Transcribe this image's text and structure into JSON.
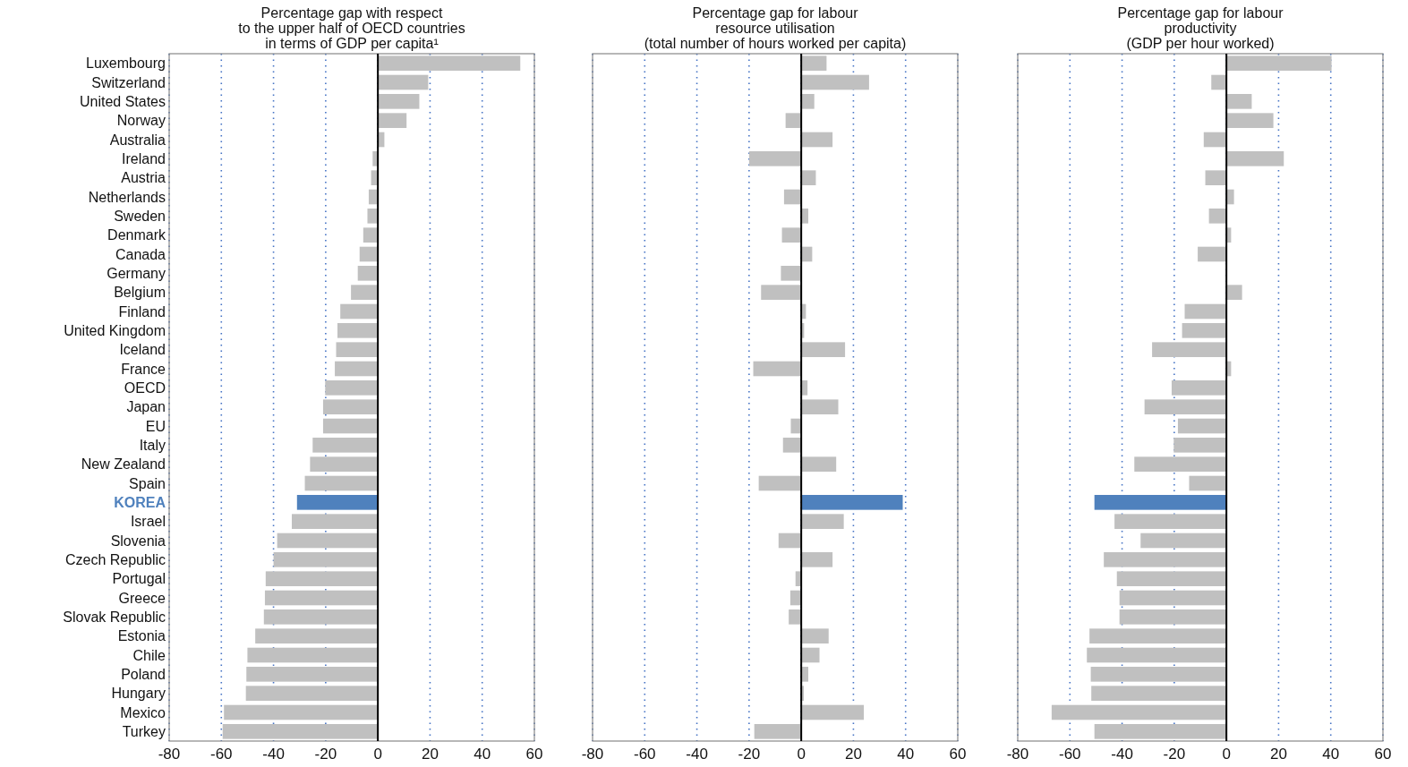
{
  "chart_data": [
    {
      "type": "bar",
      "orientation": "horizontal",
      "title": "Percentage gap with respect\nto the upper half of OECD countries\nin terms of GDP per capita¹",
      "categories": [
        "Luxembourg",
        "Switzerland",
        "United States",
        "Norway",
        "Australia",
        "Ireland",
        "Austria",
        "Netherlands",
        "Sweden",
        "Denmark",
        "Canada",
        "Germany",
        "Belgium",
        "Finland",
        "United Kingdom",
        "Iceland",
        "France",
        "OECD",
        "Japan",
        "EU",
        "Italy",
        "New Zealand",
        "Spain",
        "KOREA",
        "Israel",
        "Slovenia",
        "Czech Republic",
        "Portugal",
        "Greece",
        "Slovak Republic",
        "Estonia",
        "Chile",
        "Poland",
        "Hungary",
        "Mexico",
        "Turkey"
      ],
      "values": [
        54.6,
        19.3,
        15.9,
        11,
        2.5,
        -2,
        -2.6,
        -3.5,
        -4,
        -5.6,
        -7,
        -7.7,
        -10.3,
        -14.4,
        -15.5,
        -16,
        -16.5,
        -20.2,
        -21,
        -21,
        -25,
        -26,
        -28,
        -31,
        -33,
        -38.6,
        -40,
        -43,
        -43.3,
        -43.7,
        -47,
        -50,
        -50.4,
        -50.6,
        -59,
        -59.5
      ],
      "colors": [
        "#c0c0c0",
        "#c0c0c0",
        "#c0c0c0",
        "#c0c0c0",
        "#c0c0c0",
        "#c0c0c0",
        "#c0c0c0",
        "#c0c0c0",
        "#c0c0c0",
        "#c0c0c0",
        "#c0c0c0",
        "#c0c0c0",
        "#c0c0c0",
        "#c0c0c0",
        "#c0c0c0",
        "#c0c0c0",
        "#c0c0c0",
        "#c0c0c0",
        "#c0c0c0",
        "#c0c0c0",
        "#c0c0c0",
        "#c0c0c0",
        "#c0c0c0",
        "#4f81bd",
        "#c0c0c0",
        "#c0c0c0",
        "#c0c0c0",
        "#c0c0c0",
        "#c0c0c0",
        "#c0c0c0",
        "#c0c0c0",
        "#c0c0c0",
        "#c0c0c0",
        "#c0c0c0",
        "#c0c0c0",
        "#c0c0c0"
      ],
      "xlim": [
        -80,
        60
      ],
      "xticks": [
        -80,
        -60,
        -40,
        -20,
        0,
        20,
        40,
        60
      ],
      "grid": "x",
      "ref_lines": [
        {
          "axis": "x",
          "value": 0,
          "color": "#000000"
        }
      ]
    },
    {
      "type": "bar",
      "orientation": "horizontal",
      "title": "Percentage gap for labour\nresource utilisation\n(total number of hours worked per capita)",
      "categories": [
        null,
        null,
        null,
        null,
        null,
        null,
        null,
        null,
        null,
        null,
        null,
        null,
        null,
        null,
        null,
        null,
        null,
        null,
        null,
        null,
        null,
        null,
        null,
        null,
        null,
        null,
        null,
        null,
        null,
        null,
        null,
        null,
        null,
        null,
        null,
        null
      ],
      "values": [
        9.7,
        26,
        5,
        -6,
        12,
        -20,
        5.6,
        -6.6,
        2.7,
        -7.4,
        4.2,
        -7.8,
        -15.4,
        1.8,
        1.1,
        16.8,
        -18.4,
        2.4,
        14.2,
        -4,
        -7,
        13.4,
        -16.3,
        38.9,
        16.3,
        -8.7,
        12,
        -2.2,
        -4.2,
        -4.8,
        10.5,
        7,
        2.7,
        1,
        24,
        -18
      ],
      "colors": [
        "#c0c0c0",
        "#c0c0c0",
        "#c0c0c0",
        "#c0c0c0",
        "#c0c0c0",
        "#c0c0c0",
        "#c0c0c0",
        "#c0c0c0",
        "#c0c0c0",
        "#c0c0c0",
        "#c0c0c0",
        "#c0c0c0",
        "#c0c0c0",
        "#c0c0c0",
        "#c0c0c0",
        "#c0c0c0",
        "#c0c0c0",
        "#c0c0c0",
        "#c0c0c0",
        "#c0c0c0",
        "#c0c0c0",
        "#c0c0c0",
        "#c0c0c0",
        "#4f81bd",
        "#c0c0c0",
        "#c0c0c0",
        "#c0c0c0",
        "#c0c0c0",
        "#c0c0c0",
        "#c0c0c0",
        "#c0c0c0",
        "#c0c0c0",
        "#c0c0c0",
        "#c0c0c0",
        "#c0c0c0",
        "#c0c0c0"
      ],
      "xlim": [
        -80,
        60
      ],
      "xticks": [
        -80,
        -60,
        -40,
        -20,
        0,
        20,
        40,
        60
      ],
      "grid": "x",
      "tick_labels": "x",
      "ref_lines": [
        {
          "axis": "x",
          "value": 0,
          "color": "#000000"
        }
      ]
    },
    {
      "type": "bar",
      "orientation": "horizontal",
      "title": "Percentage gap for labour\nproductivity\n(GDP per hour worked)",
      "categories": [
        null,
        null,
        null,
        null,
        null,
        null,
        null,
        null,
        null,
        null,
        null,
        null,
        null,
        null,
        null,
        null,
        null,
        null,
        null,
        null,
        null,
        null,
        null,
        null,
        null,
        null,
        null,
        null,
        null,
        null,
        null,
        null,
        null,
        null,
        null,
        null
      ],
      "values": [
        40.3,
        -5.8,
        9.7,
        18,
        -8.7,
        22,
        -8.1,
        2.9,
        -6.7,
        1.8,
        -11,
        0,
        6,
        -16,
        -17,
        -28.5,
        1.8,
        -21,
        -31.4,
        -18.6,
        -20.2,
        -35.3,
        -14.3,
        -50.6,
        -42.9,
        -32.9,
        -47,
        -42,
        -41,
        -41,
        -52.5,
        -53.5,
        -52,
        -51.8,
        -67,
        -50.6
      ],
      "colors": [
        "#c0c0c0",
        "#c0c0c0",
        "#c0c0c0",
        "#c0c0c0",
        "#c0c0c0",
        "#c0c0c0",
        "#c0c0c0",
        "#c0c0c0",
        "#c0c0c0",
        "#c0c0c0",
        "#c0c0c0",
        "#c0c0c0",
        "#c0c0c0",
        "#c0c0c0",
        "#c0c0c0",
        "#c0c0c0",
        "#c0c0c0",
        "#c0c0c0",
        "#c0c0c0",
        "#c0c0c0",
        "#c0c0c0",
        "#c0c0c0",
        "#c0c0c0",
        "#4f81bd",
        "#c0c0c0",
        "#c0c0c0",
        "#c0c0c0",
        "#c0c0c0",
        "#c0c0c0",
        "#c0c0c0",
        "#c0c0c0",
        "#c0c0c0",
        "#c0c0c0",
        "#c0c0c0",
        "#c0c0c0",
        "#c0c0c0"
      ],
      "xlim": [
        -80,
        60
      ],
      "xticks": [
        -80,
        -60,
        -40,
        -20,
        0,
        20,
        40,
        60
      ],
      "grid": "x",
      "tick_labels": "x",
      "ref_lines": [
        {
          "axis": "x",
          "value": 0,
          "color": "#000000"
        }
      ]
    }
  ]
}
